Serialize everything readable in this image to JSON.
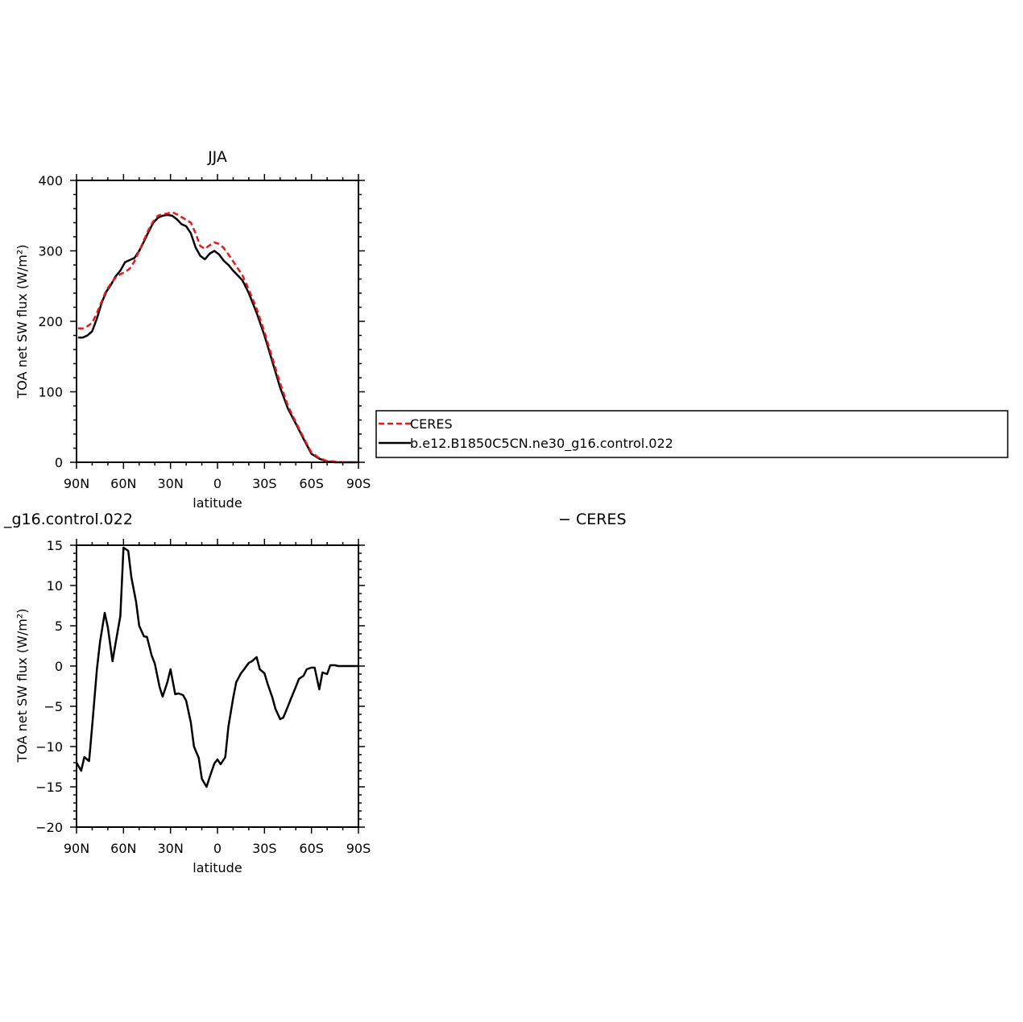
{
  "chart_data": [
    {
      "type": "line",
      "title": "JJA",
      "xlabel": "latitude",
      "ylabel": "TOA net SW flux (W/m²)",
      "xlim": [
        90,
        -90
      ],
      "ylim": [
        0,
        400
      ],
      "xticks": [
        90,
        60,
        30,
        0,
        -30,
        -60,
        -90
      ],
      "xtick_labels": [
        "90N",
        "60N",
        "30N",
        "0",
        "30S",
        "60S",
        "90S"
      ],
      "yticks": [
        0,
        100,
        200,
        300,
        400
      ],
      "ytick_labels": [
        "0",
        "100",
        "200",
        "300",
        "400"
      ],
      "legend_placement": "right of plot",
      "series": [
        {
          "name": "CERES",
          "color": "#e31a1c",
          "dash": "dashed",
          "x": [
            89,
            86,
            83,
            80,
            77,
            74,
            71,
            68,
            65,
            62,
            59,
            56,
            53,
            50,
            47,
            44,
            41,
            38,
            35,
            32,
            29,
            26,
            23,
            20,
            17,
            14,
            11,
            8,
            5,
            2,
            -1,
            -4,
            -7,
            -10,
            -13,
            -16,
            -20,
            -25,
            -30,
            -35,
            -40,
            -45,
            -50,
            -55,
            -60,
            -65,
            -70,
            -75,
            -80,
            -85,
            -89
          ],
          "y": [
            190,
            190,
            193,
            198,
            212,
            228,
            244,
            254,
            262,
            267,
            270,
            275,
            285,
            300,
            315,
            330,
            342,
            350,
            352,
            353,
            355,
            352,
            348,
            344,
            340,
            325,
            307,
            303,
            308,
            312,
            310,
            304,
            295,
            285,
            275,
            265,
            245,
            218,
            185,
            148,
            112,
            80,
            57,
            35,
            14,
            6,
            2,
            1,
            0,
            0,
            0
          ]
        },
        {
          "name": "b.e12.B1850C5CN.ne30_g16.control.022",
          "color": "#000000",
          "dash": "solid",
          "x": [
            89,
            86,
            83,
            80,
            77,
            74,
            71,
            68,
            65,
            62,
            59,
            56,
            53,
            50,
            47,
            44,
            41,
            38,
            35,
            32,
            29,
            26,
            23,
            20,
            17,
            14,
            11,
            8,
            5,
            2,
            -1,
            -4,
            -7,
            -10,
            -13,
            -16,
            -20,
            -25,
            -30,
            -35,
            -40,
            -45,
            -50,
            -55,
            -60,
            -65,
            -70,
            -75,
            -80,
            -85,
            -89
          ],
          "y": [
            177,
            177,
            180,
            186,
            204,
            226,
            242,
            252,
            264,
            272,
            284,
            287,
            290,
            300,
            313,
            327,
            340,
            347,
            350,
            351,
            350,
            345,
            338,
            335,
            325,
            305,
            293,
            288,
            296,
            300,
            295,
            286,
            280,
            272,
            265,
            258,
            240,
            212,
            180,
            143,
            106,
            76,
            55,
            33,
            12,
            5,
            1,
            0,
            0,
            0,
            0
          ]
        }
      ]
    },
    {
      "type": "line",
      "title": "_g16.control.022",
      "title_right": "− CERES",
      "xlabel": "latitude",
      "ylabel": "TOA net SW flux (W/m²)",
      "xlim": [
        90,
        -90
      ],
      "ylim": [
        -20,
        15
      ],
      "xticks": [
        90,
        60,
        30,
        0,
        -30,
        -60,
        -90
      ],
      "xtick_labels": [
        "90N",
        "60N",
        "30N",
        "0",
        "30S",
        "60S",
        "90S"
      ],
      "yticks": [
        -20,
        -15,
        -10,
        -5,
        0,
        5,
        10,
        15
      ],
      "ytick_labels": [
        "−20",
        "−15",
        "−10",
        "−5",
        "0",
        "5",
        "10",
        "15"
      ],
      "series": [
        {
          "color": "#000000",
          "dash": "solid",
          "x": [
            90,
            87,
            85,
            82,
            80,
            77,
            75,
            72,
            70,
            67,
            65,
            62,
            60,
            57,
            55,
            52,
            50,
            47,
            45,
            42,
            40,
            37,
            35,
            32,
            30,
            27,
            25,
            22,
            20,
            17,
            15,
            12,
            10,
            7,
            5,
            2,
            0,
            -2,
            -5,
            -7,
            -10,
            -12,
            -15,
            -17,
            -20,
            -22,
            -25,
            -27,
            -30,
            -32,
            -35,
            -37,
            -40,
            -42,
            -45,
            -47,
            -50,
            -52,
            -55,
            -57,
            -60,
            -62,
            -65,
            -67,
            -70,
            -72,
            -75,
            -77,
            -80,
            -85,
            -90
          ],
          "y": [
            -12,
            -13,
            -11.3,
            -11.8,
            -7.5,
            -0.4,
            3,
            6.6,
            4.8,
            0.6,
            2.9,
            6.2,
            14.7,
            14.3,
            11,
            8,
            5,
            3.7,
            3.6,
            1.3,
            0.3,
            -2.6,
            -3.8,
            -2,
            -0.4,
            -3.5,
            -3.4,
            -3.6,
            -4.3,
            -7,
            -10,
            -11.4,
            -14,
            -15,
            -13.8,
            -12.1,
            -11.6,
            -12.2,
            -11.3,
            -7.5,
            -4,
            -2,
            -0.9,
            -0.4,
            0.4,
            0.6,
            1.1,
            -0.4,
            -0.9,
            -2.2,
            -3.9,
            -5.3,
            -6.6,
            -6.4,
            -5,
            -4,
            -2.6,
            -1.6,
            -1.2,
            -0.4,
            -0.2,
            -0.2,
            -2.9,
            -0.8,
            -1,
            0.1,
            0.1,
            0,
            0,
            0,
            0
          ]
        }
      ]
    }
  ]
}
